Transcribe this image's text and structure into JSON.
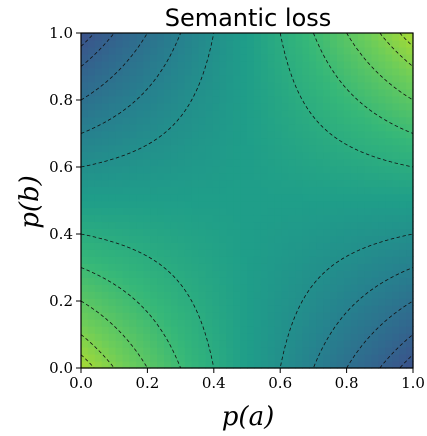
{
  "chart_data": {
    "type": "heatmap",
    "title": "Semantic loss",
    "xlabel": "p(a)",
    "ylabel": "p(b)",
    "xlim": [
      0.0,
      1.0
    ],
    "ylim": [
      0.0,
      1.0
    ],
    "x_ticks": [
      "0.0",
      "0.2",
      "0.4",
      "0.6",
      "0.8",
      "1.0"
    ],
    "y_ticks": [
      "0.0",
      "0.2",
      "0.4",
      "0.6",
      "0.8",
      "1.0"
    ],
    "colormap": "viridis",
    "contour_style": "dashed",
    "contour_color": "#111111",
    "grid": false,
    "legend": "none",
    "saddle_point": [
      0.5,
      0.5
    ],
    "corners": {
      "low_a_low_b": "yellow-green",
      "high_a_high_b": "yellow-green",
      "low_a_high_b": "dark-teal",
      "high_a_low_b": "dark-teal"
    }
  }
}
